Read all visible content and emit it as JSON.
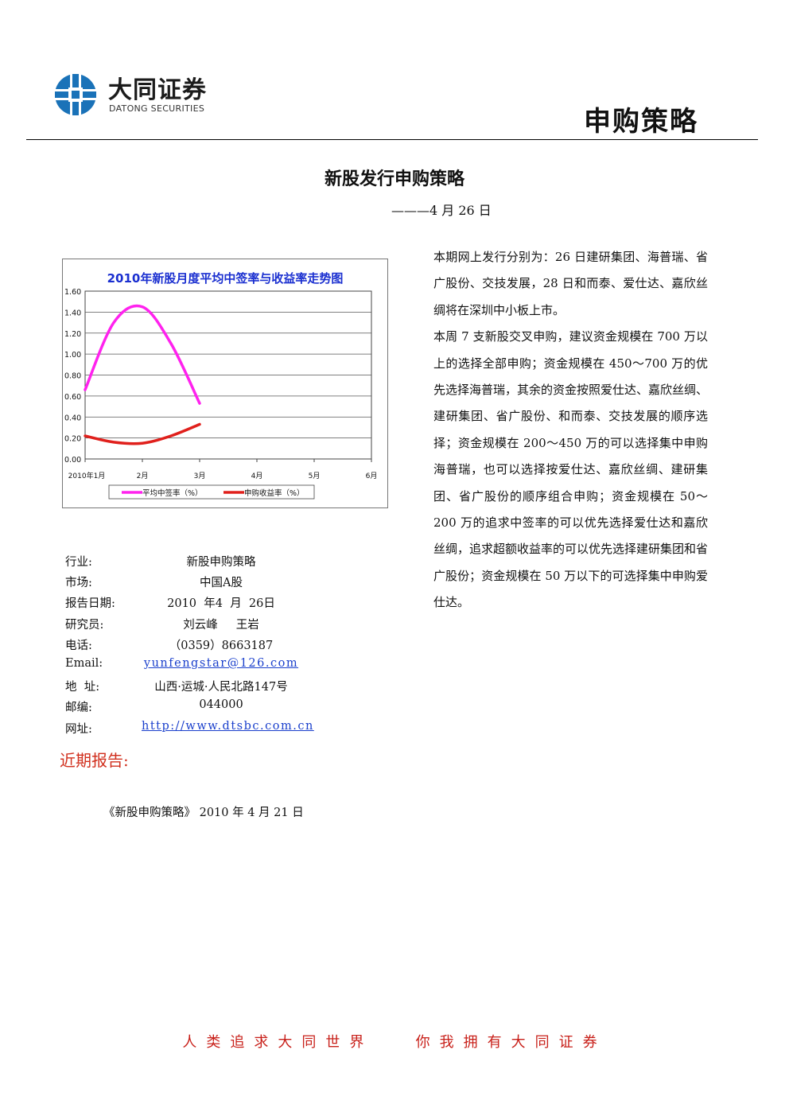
{
  "brand": {
    "name_cn": "大同证券",
    "name_en": "DATONG SECURITIES",
    "logo_color": "#1a72b8"
  },
  "header": {
    "title": "申购策略"
  },
  "document": {
    "title": "新股发行申购策略",
    "date_line": "———4 月 26 日"
  },
  "chart_data": {
    "type": "line",
    "title": "2010年新股月度平均中签率与收益率走势图",
    "categories": [
      "2010年1月",
      "2月",
      "3月",
      "4月",
      "5月",
      "6月"
    ],
    "y_ticks": [
      "1.60",
      "1.40",
      "1.20",
      "1.00",
      "0.80",
      "0.60",
      "0.40",
      "0.20",
      "0.00"
    ],
    "ylim": [
      0,
      1.6
    ],
    "grid": true,
    "legend_placement": "bottom",
    "series": [
      {
        "name": "平均中签率（%）",
        "color": "#ff22ee",
        "x": [
          0,
          0.5,
          1,
          1.5,
          2
        ],
        "values": [
          0.66,
          1.3,
          1.45,
          1.1,
          0.53
        ]
      },
      {
        "name": "申购收益率（%）",
        "color": "#e0201c",
        "x": [
          0,
          0.5,
          1,
          1.5,
          2
        ],
        "values": [
          0.22,
          0.16,
          0.15,
          0.22,
          0.33
        ]
      }
    ]
  },
  "summary": {
    "paragraphs": [
      "本期网上发行分别为：26 日建研集团、海普瑞、省广股份、交技发展，28 日和而泰、爱仕达、嘉欣丝绸将在深圳中小板上市。",
      "本周 7 支新股交叉申购，建议资金规模在 700 万以上的选择全部申购；资金规模在 450～700 万的优先选择海普瑞，其余的资金按照爱仕达、嘉欣丝绸、建研集团、省广股份、和而泰、交技发展的顺序选择；资金规模在 200～450 万的可以选择集中申购海普瑞，也可以选择按爱仕达、嘉欣丝绸、建研集团、省广股份的顺序组合申购；资金规模在 50～200 万的追求中签率的可以优先选择爱仕达和嘉欣丝绸，追求超额收益率的可以优先选择建研集团和省广股份；资金规模在 50 万以下的可选择集中申购爱仕达。"
    ]
  },
  "info": [
    {
      "label": "行业:",
      "value": "新股申购策略"
    },
    {
      "label": "市场:",
      "value": "中国A股"
    },
    {
      "label": "报告日期:",
      "value": "2010  年4  月  26日"
    },
    {
      "label": "研究员:",
      "value": "刘云峰     王岩"
    },
    {
      "label": "电话:",
      "value": "（0359）8663187"
    },
    {
      "label": "Email:",
      "value": "yunfengstar@126.com",
      "link": true
    },
    {
      "label": "地  址:",
      "value": "山西·运城·人民北路147号"
    },
    {
      "label": "邮编:",
      "value": "044000"
    },
    {
      "label": "网址:",
      "value": "http://www.dtsbc.com.cn",
      "link": true
    }
  ],
  "recent": {
    "heading": "近期报告:",
    "items": [
      "《新股申购策略》 2010 年 4 月 21 日"
    ]
  },
  "footer": {
    "slogan": "人类追求大同世界   你我拥有大同证券"
  }
}
